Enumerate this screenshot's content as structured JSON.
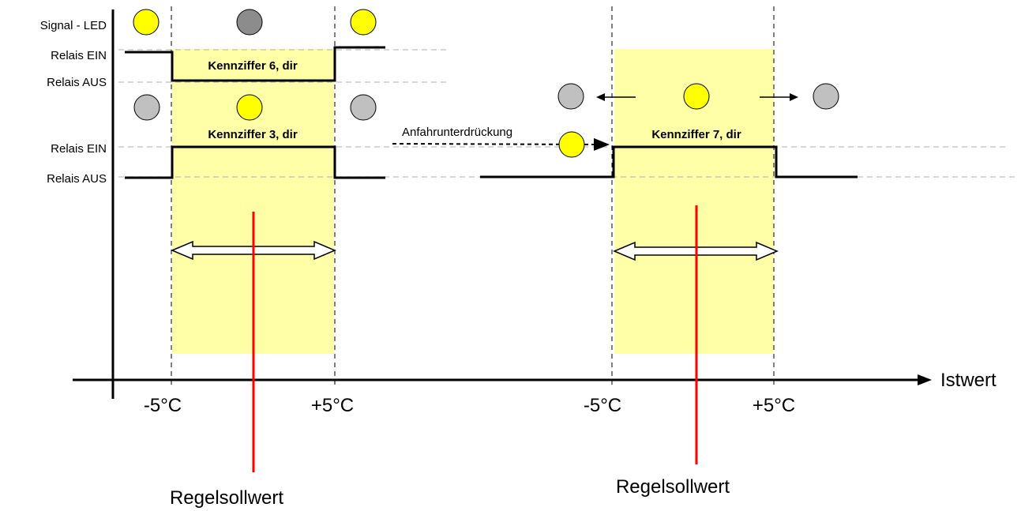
{
  "left_labels": {
    "signal_led": "Signal - LED",
    "relais_ein_1": "Relais EIN",
    "relais_aus_1": "Relais AUS",
    "relais_ein_2": "Relais EIN",
    "relais_aus_2": "Relais AUS"
  },
  "boxes": {
    "kz6": "Kennziffer 6, dir",
    "kz3": "Kennziffer 3, dir",
    "kz7": "Kennziffer 7, dir"
  },
  "annotation": "Anfahrunterdrückung",
  "axis": {
    "label": "Istwert",
    "ticks": [
      "-5°C",
      "+5°C",
      "-5°C",
      "+5°C"
    ]
  },
  "setpoint": {
    "left": "Regelsollwert",
    "right": "Regelsollwert"
  },
  "colors": {
    "band": "#FFFFA8",
    "led_on": "#FFFF00",
    "led_off": "#C0C0C0",
    "led_dark": "#8C8C8C",
    "setpoint_line": "#FF0000",
    "grid_dash": "#BFBFBF"
  }
}
